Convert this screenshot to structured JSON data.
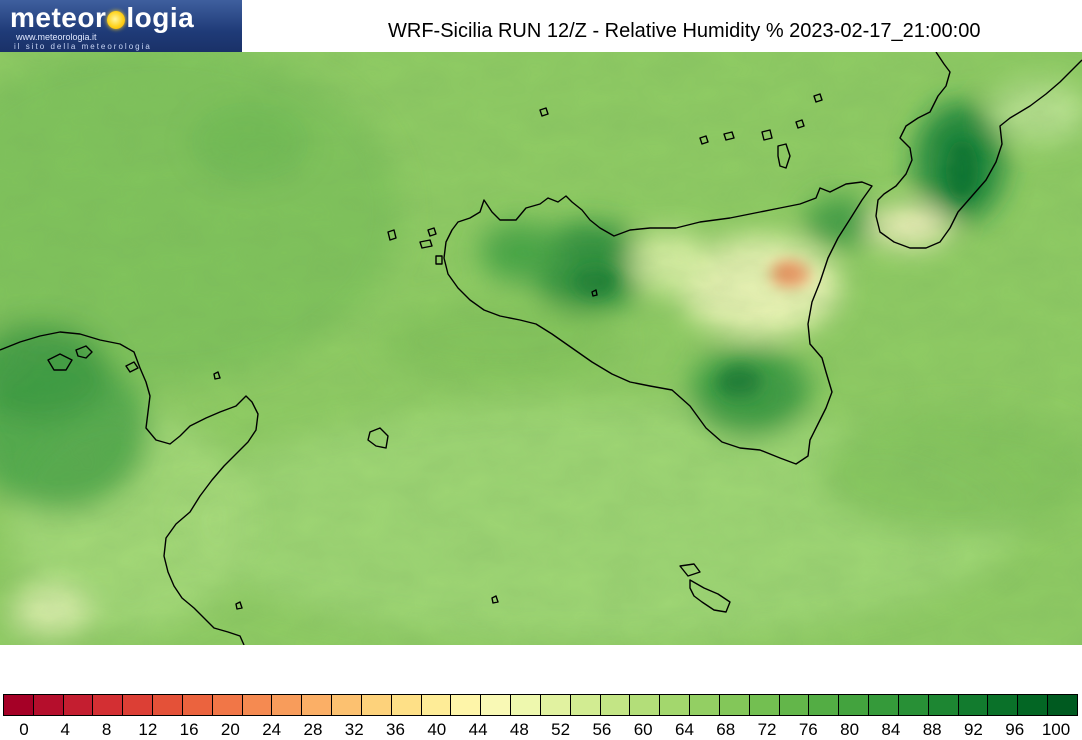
{
  "logo": {
    "name_start": "meteor",
    "name_end": "logia",
    "url": "www.meteorologia.it",
    "tagline": "il sito della meteorologia",
    "colors": {
      "background": "#1f3b78",
      "sun": "#ffd21a"
    }
  },
  "title": "WRF-Sicilia RUN 12/Z - Relative Humidity % 2023-02-17_21:00:00",
  "map": {
    "field": "Relative Humidity %",
    "coastline_color": "#000000",
    "features": [
      "sicily-island",
      "tunisia-coast",
      "calabria-coast",
      "malta-islands",
      "pantelleria-island",
      "aeolian-islands",
      "egadi-islands"
    ]
  },
  "legend": {
    "colors": [
      "#a50026",
      "#b50e2c",
      "#c41e30",
      "#d32f33",
      "#dc3f35",
      "#e45138",
      "#eb633e",
      "#f17647",
      "#f58a51",
      "#f89c5b",
      "#fbaf66",
      "#fcc170",
      "#fdd27b",
      "#fee087",
      "#feec97",
      "#fef5a9",
      "#f9f9b5",
      "#eef8ae",
      "#e1f2a0",
      "#d2ec92",
      "#c3e585",
      "#b3de79",
      "#a3d76d",
      "#93cf63",
      "#83c759",
      "#73bf51",
      "#63b64a",
      "#53ad44",
      "#43a33e",
      "#359a3a",
      "#289036",
      "#1d8632",
      "#127b2e",
      "#0a7129",
      "#036624",
      "#005a20"
    ],
    "tick_labels": [
      "0",
      "4",
      "8",
      "12",
      "16",
      "20",
      "24",
      "28",
      "32",
      "36",
      "40",
      "44",
      "48",
      "52",
      "56",
      "60",
      "64",
      "68",
      "72",
      "76",
      "80",
      "84",
      "88",
      "92",
      "96",
      "100"
    ]
  }
}
